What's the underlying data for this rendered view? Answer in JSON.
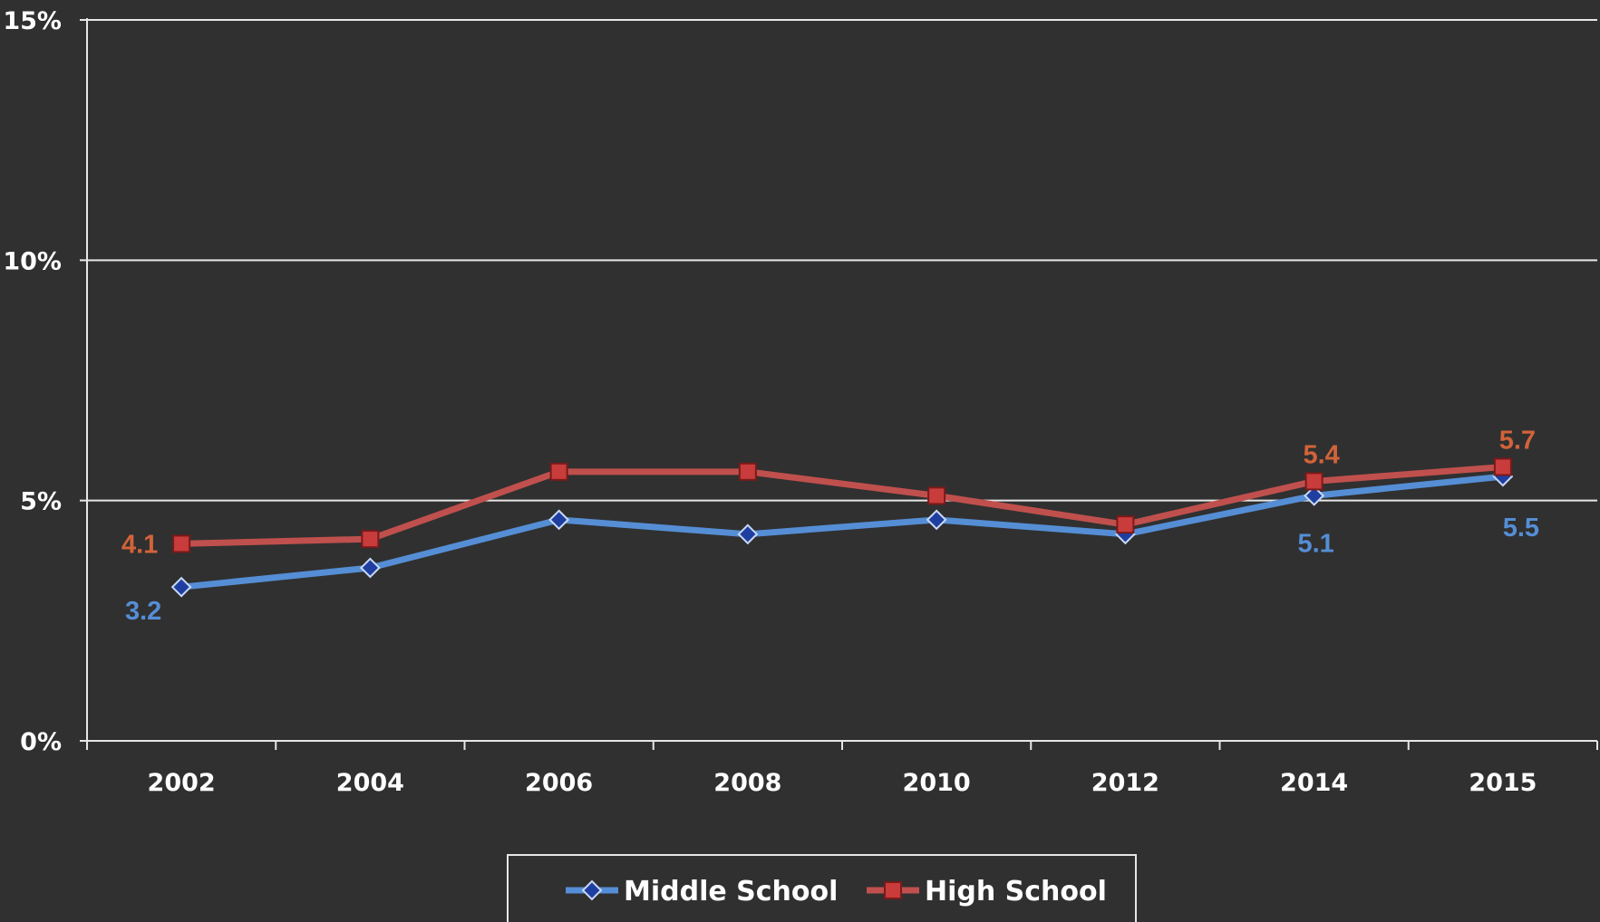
{
  "chart_data": {
    "type": "line",
    "categories": [
      "2002",
      "2004",
      "2006",
      "2008",
      "2010",
      "2012",
      "2014",
      "2015"
    ],
    "y_ticks": [
      {
        "value": 0,
        "label": "0%"
      },
      {
        "value": 5,
        "label": "5%"
      },
      {
        "value": 10,
        "label": "10%"
      },
      {
        "value": 15,
        "label": "15%"
      }
    ],
    "ylim": [
      0,
      15
    ],
    "grid": true,
    "legend_position": "bottom-center",
    "series": [
      {
        "name": "Middle School",
        "color": "#558ed5",
        "marker": "diamond",
        "marker_color": "#1f3fa0",
        "label_color": "#558ed5",
        "values": [
          3.2,
          3.6,
          4.6,
          4.3,
          4.6,
          4.3,
          5.1,
          5.5
        ],
        "data_labels": [
          {
            "index": 0,
            "text": "3.2"
          },
          {
            "index": 6,
            "text": "5.1"
          },
          {
            "index": 7,
            "text": "5.5"
          }
        ]
      },
      {
        "name": "High School",
        "color": "#c0504d",
        "marker": "square",
        "marker_color": "#c83c3c",
        "label_color": "#d2633a",
        "values": [
          4.1,
          4.2,
          5.6,
          5.6,
          5.1,
          4.5,
          5.4,
          5.7
        ],
        "data_labels": [
          {
            "index": 0,
            "text": "4.1"
          },
          {
            "index": 6,
            "text": "5.4"
          },
          {
            "index": 7,
            "text": "5.7"
          }
        ]
      }
    ]
  }
}
